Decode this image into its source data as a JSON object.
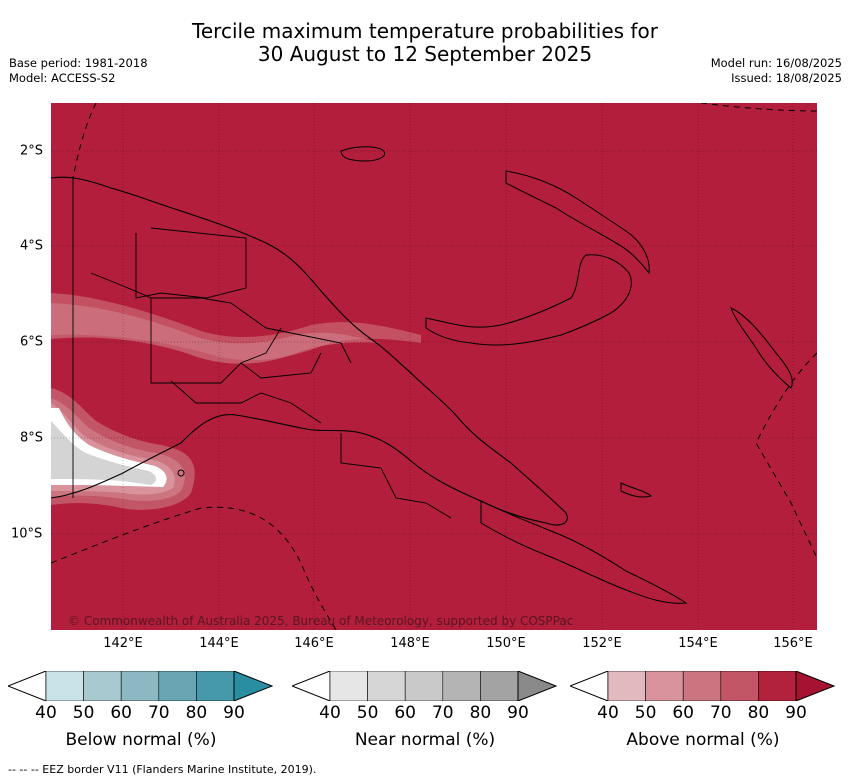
{
  "title_line1": "Tercile maximum temperature probabilities for",
  "title_line2": "30 August to 12 September 2025",
  "base_period": "Base period: 1981-2018",
  "model": "Model: ACCESS-S2",
  "model_run": "Model run: 16/08/2025",
  "issued": "Issued: 18/08/2025",
  "lat_labels": [
    "2°S",
    "4°S",
    "6°S",
    "8°S",
    "10°S"
  ],
  "lon_labels": [
    "142°E",
    "144°E",
    "146°E",
    "148°E",
    "150°E",
    "152°E",
    "154°E",
    "156°E"
  ],
  "copyright": "© Commonwealth of Australia 2025, Bureau of Meteorology, supported by COSPPac",
  "colorbars": [
    {
      "label": "Below normal (%)",
      "ticks": [
        "40",
        "50",
        "60",
        "70",
        "80",
        "90"
      ],
      "colors": [
        "#c9e3e8",
        "#a8c9cf",
        "#8bb8c2",
        "#68a6b4",
        "#4599ab",
        "#2a8ea3"
      ]
    },
    {
      "label": "Near normal (%)",
      "ticks": [
        "40",
        "50",
        "60",
        "70",
        "80",
        "90"
      ],
      "colors": [
        "#e6e6e6",
        "#d6d6d6",
        "#c9c9c9",
        "#b4b4b4",
        "#a3a3a3",
        "#8a8a8a"
      ]
    },
    {
      "label": "Above normal (%)",
      "ticks": [
        "40",
        "50",
        "60",
        "70",
        "80",
        "90"
      ],
      "colors": [
        "#e3b9c0",
        "#d8939c",
        "#cc747f",
        "#c25666",
        "#b3223c",
        "#a51232"
      ]
    }
  ],
  "footer": "-- -- -- EEZ border V11 (Flanders Marine Institute, 2019).",
  "colors": {
    "above_dominant": "#b21e3b",
    "near_normal": "#d4d4d4",
    "grid": "#000000"
  }
}
